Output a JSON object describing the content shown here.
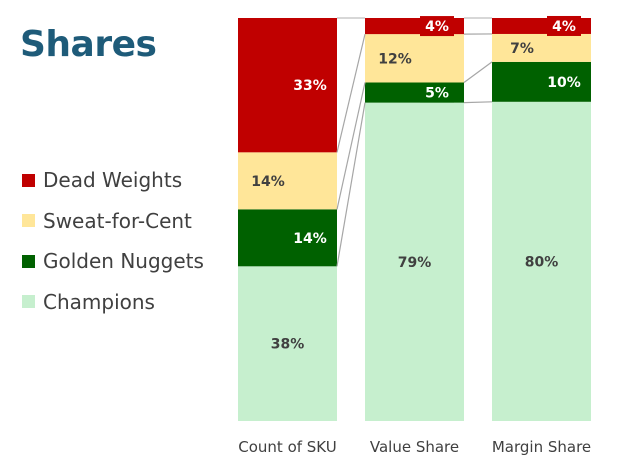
{
  "title": "Shares",
  "legend": [
    {
      "label": "Dead Weights",
      "color": "#C00000"
    },
    {
      "label": "Sweat-for-Cent",
      "color": "#FFE699"
    },
    {
      "label": "Golden Nuggets",
      "color": "#006100"
    },
    {
      "label": "Champions",
      "color": "#C6EFCE"
    }
  ],
  "chart_data": {
    "type": "bar",
    "stacked": true,
    "percent_stacked": true,
    "title": "Shares",
    "categories": [
      "Count of SKU",
      "Value Share",
      "Margin Share"
    ],
    "series": [
      {
        "name": "Champions",
        "values": [
          38,
          79,
          80
        ],
        "labels": [
          "38%",
          "79%",
          "80%"
        ],
        "color": "#C6EFCE",
        "label_color": "#404040"
      },
      {
        "name": "Golden Nuggets",
        "values": [
          14,
          5,
          10
        ],
        "labels": [
          "14%",
          "5%",
          "10%"
        ],
        "color": "#006100",
        "label_color": "#ffffff"
      },
      {
        "name": "Sweat-for-Cent",
        "values": [
          14,
          12,
          7
        ],
        "labels": [
          "14%",
          "12%",
          "7%"
        ],
        "color": "#FFE699",
        "label_color": "#404040"
      },
      {
        "name": "Dead Weights",
        "values": [
          33,
          4,
          4
        ],
        "labels": [
          "33%",
          "4%",
          "4%"
        ],
        "color": "#C00000",
        "label_color": "#ffffff"
      }
    ],
    "series_lines": true,
    "ylim": [
      0,
      100
    ],
    "legend_position": "left",
    "grid": false
  }
}
